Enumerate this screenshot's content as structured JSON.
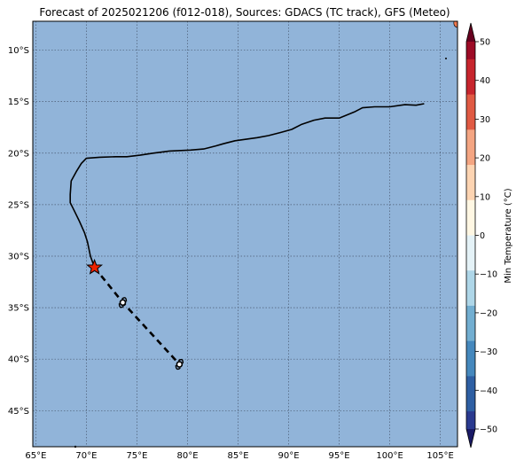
{
  "title": "Forecast of 2025021206 (f012-018), Sources: GDACS (TC track), GFS (Meteo)",
  "map": {
    "lon_range": [
      64.7,
      106.7
    ],
    "lat_range": [
      -48.5,
      -7.2
    ],
    "lon_ticks": [
      65,
      70,
      75,
      80,
      85,
      90,
      95,
      100,
      105
    ],
    "lon_tick_labels": [
      "65°E",
      "70°E",
      "75°E",
      "80°E",
      "85°E",
      "90°E",
      "95°E",
      "100°E",
      "105°E"
    ],
    "lat_ticks": [
      -10,
      -15,
      -20,
      -25,
      -30,
      -35,
      -40,
      -45
    ],
    "lat_tick_labels": [
      "10°S",
      "15°S",
      "20°S",
      "25°S",
      "30°S",
      "35°S",
      "40°S",
      "45°S"
    ],
    "grid": true,
    "background_color": "#91b4d9",
    "contour_line": [
      [
        103.4,
        -15.2
      ],
      [
        102.6,
        -15.35
      ],
      [
        101.5,
        -15.3
      ],
      [
        100.0,
        -15.5
      ],
      [
        98.5,
        -15.5
      ],
      [
        97.3,
        -15.6
      ],
      [
        96.5,
        -16.0
      ],
      [
        95.0,
        -16.6
      ],
      [
        93.6,
        -16.6
      ],
      [
        92.5,
        -16.8
      ],
      [
        91.3,
        -17.2
      ],
      [
        90.3,
        -17.7
      ],
      [
        89.2,
        -18.0
      ],
      [
        88.0,
        -18.3
      ],
      [
        86.9,
        -18.5
      ],
      [
        85.8,
        -18.65
      ],
      [
        84.7,
        -18.8
      ],
      [
        83.5,
        -19.1
      ],
      [
        82.8,
        -19.3
      ],
      [
        81.6,
        -19.6
      ],
      [
        80.3,
        -19.7
      ],
      [
        78.2,
        -19.8
      ],
      [
        76.6,
        -20.0
      ],
      [
        75.3,
        -20.2
      ],
      [
        74.0,
        -20.35
      ],
      [
        72.9,
        -20.35
      ],
      [
        71.3,
        -20.4
      ],
      [
        70.0,
        -20.5
      ],
      [
        69.5,
        -21.0
      ],
      [
        69.0,
        -21.8
      ],
      [
        68.5,
        -22.7
      ],
      [
        68.4,
        -24.0
      ],
      [
        68.4,
        -24.8
      ],
      [
        68.8,
        -25.6
      ],
      [
        69.3,
        -26.6
      ],
      [
        69.8,
        -27.7
      ],
      [
        70.1,
        -28.6
      ],
      [
        70.4,
        -30.0
      ],
      [
        70.8,
        -31.1
      ]
    ],
    "tc_track": [
      [
        70.8,
        -31.1
      ],
      [
        73.6,
        -34.5
      ],
      [
        79.2,
        -40.5
      ]
    ],
    "tc_current_position": [
      70.8,
      -31.1
    ],
    "tc_forecast_points": [
      [
        73.6,
        -34.5
      ],
      [
        79.2,
        -40.5
      ]
    ],
    "track_color": "#000000",
    "current_marker_color": "#ee2200",
    "corner_blob_color": "#f07a50"
  },
  "colorbar": {
    "label": "Min Temperature (°C)",
    "ticks": [
      50,
      40,
      30,
      20,
      10,
      0,
      -10,
      -20,
      -30,
      -40,
      -50
    ],
    "tick_labels": [
      "50",
      "40",
      "30",
      "20",
      "10",
      "0",
      "−10",
      "−20",
      "−30",
      "−40",
      "−50"
    ],
    "range": [
      -55,
      55
    ],
    "colors_top_to_bottom": [
      "#67001f",
      "#9d0b26",
      "#c7252d",
      "#e05a43",
      "#f4a582",
      "#fdd4b2",
      "#fff7e3",
      "#e4f2f7",
      "#aed6e8",
      "#72aed1",
      "#4588bd",
      "#2e5fa3",
      "#2a3a8f",
      "#1a1a66"
    ]
  }
}
